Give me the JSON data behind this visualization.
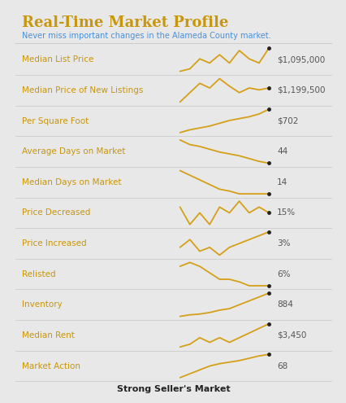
{
  "title": "Real-Time Market Profile",
  "subtitle": "Never miss important changes in the Alameda County market.",
  "bg_color": "#e8e8e8",
  "card_color": "#ffffff",
  "title_color": "#c8960a",
  "subtitle_color": "#4a90d9",
  "label_color": "#c8960a",
  "value_color": "#555555",
  "line_color": "#d4a017",
  "dot_color": "#222222",
  "rows": [
    {
      "label": "Median List Price",
      "value": "$1,095,000",
      "sparkline": [
        2.0,
        2.3,
        3.5,
        3.0,
        4.0,
        3.0,
        4.5,
        3.5,
        3.0,
        4.8
      ]
    },
    {
      "label": "Median Price of New Listings",
      "value": "$1,199,500",
      "sparkline": [
        1.5,
        2.5,
        3.5,
        3.0,
        4.0,
        3.2,
        2.5,
        3.0,
        2.8,
        3.0
      ]
    },
    {
      "label": "Per Square Foot",
      "value": "$702",
      "sparkline": [
        1.5,
        1.8,
        2.0,
        2.2,
        2.5,
        2.8,
        3.0,
        3.2,
        3.5,
        4.0
      ]
    },
    {
      "label": "Average Days on Market",
      "value": "44",
      "sparkline": [
        4.5,
        4.0,
        3.8,
        3.5,
        3.2,
        3.0,
        2.8,
        2.5,
        2.2,
        2.0
      ]
    },
    {
      "label": "Median Days on Market",
      "value": "14",
      "sparkline": [
        4.0,
        3.5,
        3.0,
        2.5,
        2.0,
        1.8,
        1.5,
        1.5,
        1.5,
        1.5
      ]
    },
    {
      "label": "Price Decreased",
      "value": "15%",
      "sparkline": [
        3.0,
        1.5,
        2.5,
        1.5,
        3.0,
        2.5,
        3.5,
        2.5,
        3.0,
        2.5
      ]
    },
    {
      "label": "Price Increased",
      "value": "3%",
      "sparkline": [
        2.5,
        3.5,
        2.0,
        2.5,
        1.5,
        2.5,
        3.0,
        3.5,
        4.0,
        4.5
      ]
    },
    {
      "label": "Relisted",
      "value": "6%",
      "sparkline": [
        3.5,
        3.8,
        3.5,
        3.0,
        2.5,
        2.5,
        2.3,
        2.0,
        2.0,
        2.0
      ]
    },
    {
      "label": "Inventory",
      "value": "884",
      "sparkline": [
        1.0,
        1.2,
        1.3,
        1.5,
        1.8,
        2.0,
        2.5,
        3.0,
        3.5,
        4.0
      ]
    },
    {
      "label": "Median Rent",
      "value": "$3,450",
      "sparkline": [
        1.5,
        1.8,
        2.5,
        2.0,
        2.5,
        2.0,
        2.5,
        3.0,
        3.5,
        4.0
      ]
    },
    {
      "label": "Market Action",
      "value": "68",
      "sparkline": [
        1.0,
        1.5,
        2.0,
        2.5,
        2.8,
        3.0,
        3.2,
        3.5,
        3.8,
        4.0
      ]
    }
  ],
  "footer": "Strong Seller's Market"
}
